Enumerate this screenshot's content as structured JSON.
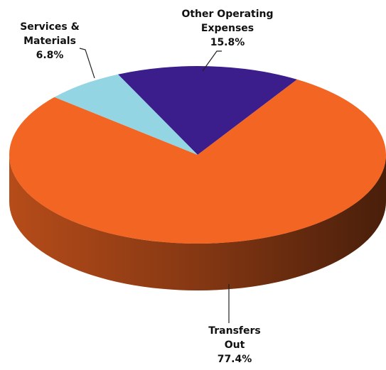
{
  "chart_data": {
    "type": "pie",
    "categories": [
      "Other Operating Expenses",
      "Transfers Out",
      "Services & Materials"
    ],
    "values": [
      15.8,
      77.4,
      6.8
    ],
    "value_labels": [
      "15.8%",
      "77.4%",
      "6.8%"
    ],
    "colors": [
      "#3b1d8c",
      "#f26522",
      "#93d5e2"
    ]
  }
}
